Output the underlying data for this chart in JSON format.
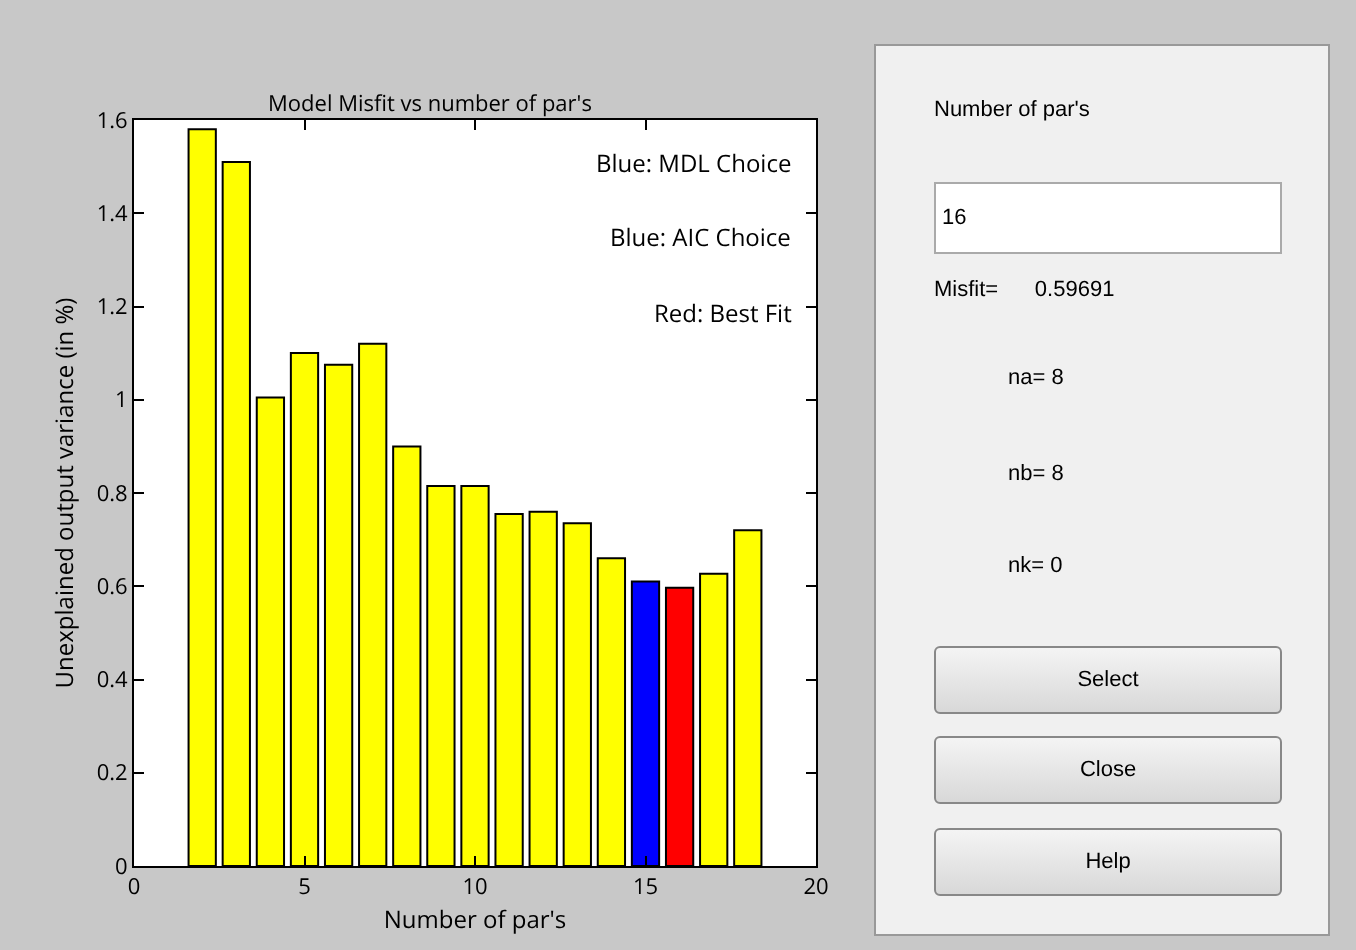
{
  "chart_data": [
    {
      "type": "bar",
      "title": "Model Misfit vs number of par's",
      "xlabel": "Number of par's",
      "ylabel": "Unexplained output variance (in %)",
      "x": [
        2,
        3,
        4,
        5,
        6,
        7,
        8,
        9,
        10,
        11,
        12,
        13,
        14,
        15,
        16,
        17,
        18
      ],
      "values": [
        1.58,
        1.51,
        1.005,
        1.1,
        1.075,
        1.12,
        0.9,
        0.815,
        0.815,
        0.755,
        0.76,
        0.735,
        0.66,
        0.61,
        0.597,
        0.627,
        0.72
      ],
      "colors": [
        "#ffff00",
        "#ffff00",
        "#ffff00",
        "#ffff00",
        "#ffff00",
        "#ffff00",
        "#ffff00",
        "#ffff00",
        "#ffff00",
        "#ffff00",
        "#ffff00",
        "#ffff00",
        "#ffff00",
        "#0000ff",
        "#ff0000",
        "#ffff00",
        "#ffff00"
      ],
      "xlim": [
        0,
        20
      ],
      "xticks": [
        0,
        5,
        10,
        15,
        20
      ],
      "ylim": [
        0,
        1.6
      ],
      "yticks": [
        0,
        0.2,
        0.4,
        0.6,
        0.8,
        1,
        1.2,
        1.4,
        1.6
      ],
      "annotations": [
        "Blue: MDL Choice",
        "Blue: AIC Choice",
        "Red: Best Fit"
      ]
    },
    {
      "type": "other",
      "annotations": [
        "Number of par's",
        "16",
        "Misfit=      0.59691",
        "na= 8",
        "nb= 8",
        "nk= 0",
        "Select",
        "Close",
        "Help"
      ]
    }
  ]
}
